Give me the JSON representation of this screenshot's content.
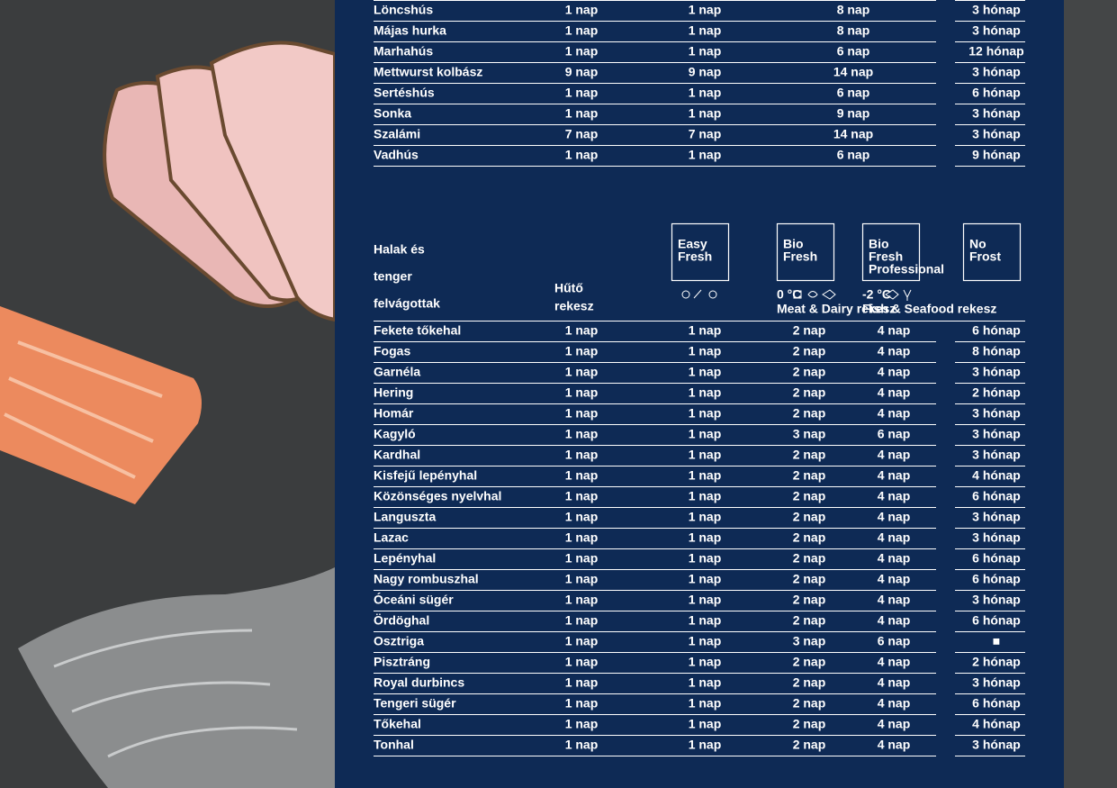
{
  "meat_table": {
    "rows": [
      [
        "Löncshús",
        "1 nap",
        "1 nap",
        "8 nap",
        "3 hónap"
      ],
      [
        "Májas hurka",
        "1 nap",
        "1 nap",
        "8 nap",
        "3 hónap"
      ],
      [
        "Marhahús",
        "1 nap",
        "1 nap",
        "6 nap",
        "12 hónap"
      ],
      [
        "Mettwurst kolbász",
        "9 nap",
        "9 nap",
        "14 nap",
        "3 hónap"
      ],
      [
        "Sertéshús",
        "1 nap",
        "1 nap",
        "6 nap",
        "6 hónap"
      ],
      [
        "Sonka",
        "1 nap",
        "1 nap",
        "9 nap",
        "3 hónap"
      ],
      [
        "Szalámi",
        "7 nap",
        "7 nap",
        "14 nap",
        "3 hónap"
      ],
      [
        "Vadhús",
        "1 nap",
        "1 nap",
        "6 nap",
        "9 hónap"
      ]
    ]
  },
  "fish_table": {
    "title": [
      "Halak és",
      "tenger",
      "felvágottak"
    ],
    "fridge_header": [
      "Hűtő",
      "rekesz"
    ],
    "boxes": [
      {
        "lines": [
          "Easy",
          "Fresh"
        ]
      },
      {
        "lines": [
          "Bio",
          "Fresh"
        ],
        "temp": "0 °C",
        "caption": "Meat & Dairy rekesz"
      },
      {
        "lines": [
          "Bio",
          "Fresh",
          "Professional"
        ],
        "temp": "-2 °C",
        "caption": "Fish & Seafood rekesz"
      },
      {
        "lines": [
          "No",
          "Frost"
        ]
      }
    ],
    "rows": [
      [
        "Fekete tőkehal",
        "1 nap",
        "1 nap",
        "2 nap",
        "4 nap",
        "6 hónap"
      ],
      [
        "Fogas",
        "1 nap",
        "1 nap",
        "2 nap",
        "4 nap",
        "8 hónap"
      ],
      [
        "Garnéla",
        "1 nap",
        "1 nap",
        "2 nap",
        "4 nap",
        "3 hónap"
      ],
      [
        "Hering",
        "1 nap",
        "1 nap",
        "2 nap",
        "4 nap",
        "2 hónap"
      ],
      [
        "Homár",
        "1 nap",
        "1 nap",
        "2 nap",
        "4 nap",
        "3 hónap"
      ],
      [
        "Kagyló",
        "1 nap",
        "1 nap",
        "3 nap",
        "6 nap",
        "3 hónap"
      ],
      [
        "Kardhal",
        "1 nap",
        "1 nap",
        "2 nap",
        "4 nap",
        "3 hónap"
      ],
      [
        "Kisfejű lepényhal",
        "1 nap",
        "1 nap",
        "2 nap",
        "4 nap",
        "4 hónap"
      ],
      [
        "Közönséges nyelvhal",
        "1 nap",
        "1 nap",
        "2 nap",
        "4 nap",
        "6 hónap"
      ],
      [
        "Languszta",
        "1 nap",
        "1 nap",
        "2 nap",
        "4 nap",
        "3 hónap"
      ],
      [
        "Lazac",
        "1 nap",
        "1 nap",
        "2 nap",
        "4 nap",
        "3 hónap"
      ],
      [
        "Lepényhal",
        "1 nap",
        "1 nap",
        "2 nap",
        "4 nap",
        "6 hónap"
      ],
      [
        "Nagy rombuszhal",
        "1 nap",
        "1 nap",
        "2 nap",
        "4 nap",
        "6 hónap"
      ],
      [
        "Óceáni sügér",
        "1 nap",
        "1 nap",
        "2 nap",
        "4 nap",
        "3 hónap"
      ],
      [
        "Ördöghal",
        "1 nap",
        "1 nap",
        "2 nap",
        "4 nap",
        "6 hónap"
      ],
      [
        "Osztriga",
        "1 nap",
        "1 nap",
        "3 nap",
        "6 nap",
        "■"
      ],
      [
        "Pisztráng",
        "1 nap",
        "1 nap",
        "2 nap",
        "4 nap",
        "2 hónap"
      ],
      [
        "Royal durbincs",
        "1 nap",
        "1 nap",
        "2 nap",
        "4 nap",
        "3 hónap"
      ],
      [
        "Tengeri sügér",
        "1 nap",
        "1 nap",
        "2 nap",
        "4 nap",
        "6 hónap"
      ],
      [
        "Tőkehal",
        "1 nap",
        "1 nap",
        "2 nap",
        "4 nap",
        "4 hónap"
      ],
      [
        "Tonhal",
        "1 nap",
        "1 nap",
        "2 nap",
        "4 nap",
        "3 hónap"
      ]
    ]
  }
}
